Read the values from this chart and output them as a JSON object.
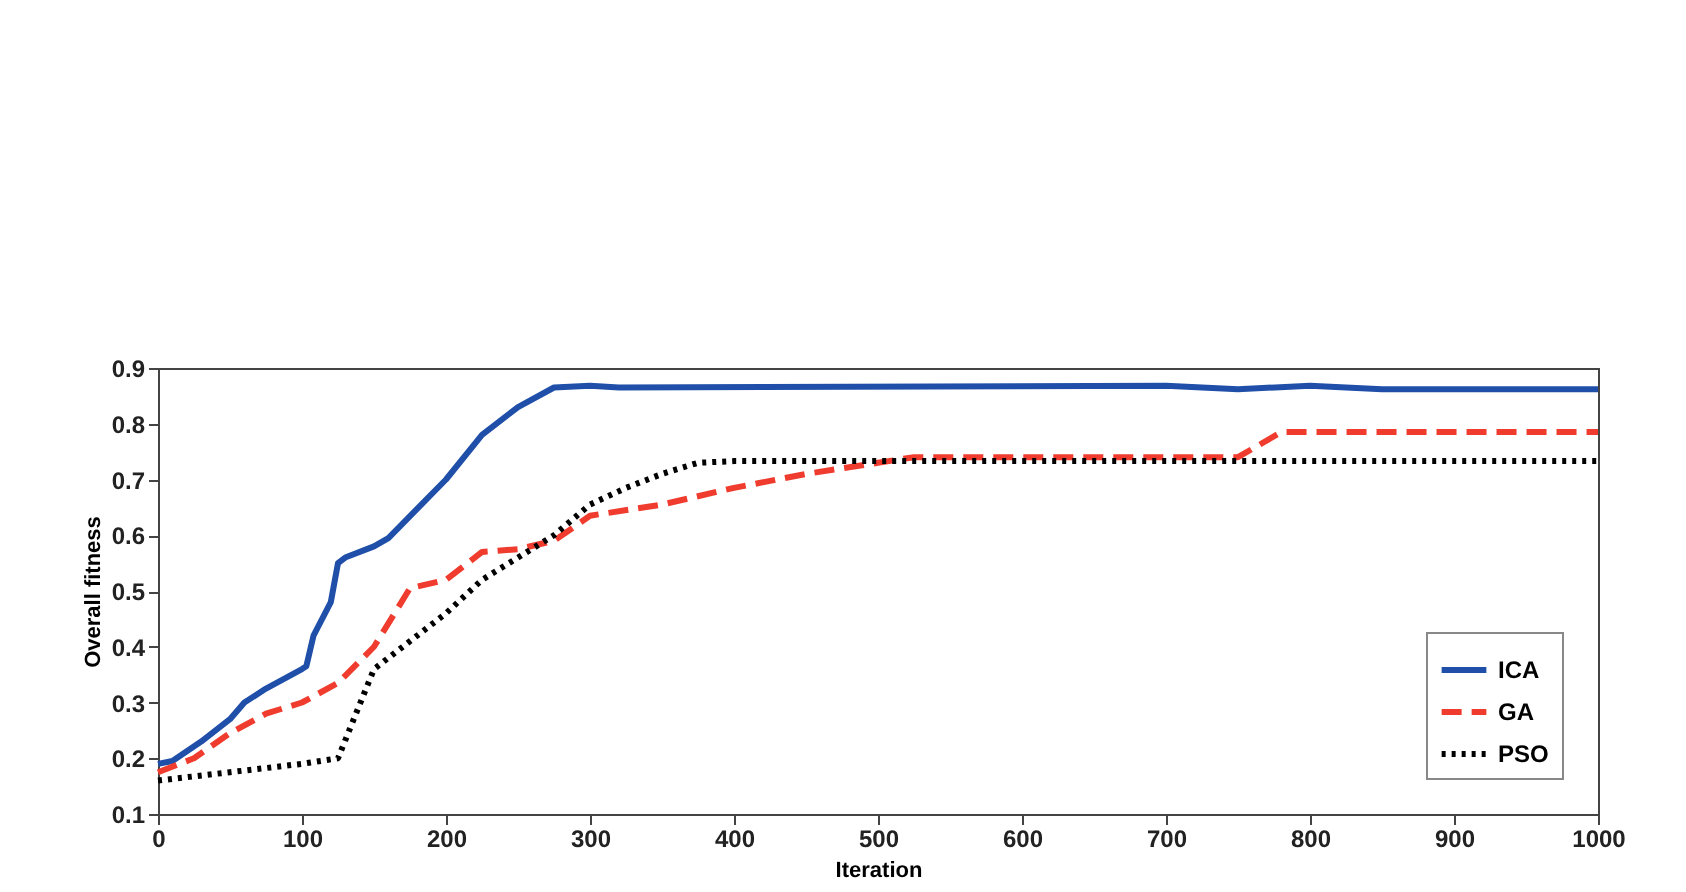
{
  "chart_data": {
    "type": "line",
    "xlabel": "Iteration",
    "ylabel": "Overall fitness",
    "xlim": [
      0,
      1000
    ],
    "ylim": [
      0.1,
      0.9
    ],
    "xticks": [
      0,
      100,
      200,
      300,
      400,
      500,
      600,
      700,
      800,
      900,
      1000
    ],
    "yticks": [
      0.1,
      0.2,
      0.3,
      0.4,
      0.5,
      0.6,
      0.7,
      0.8,
      0.9
    ],
    "grid": false,
    "legend": "bottom right",
    "series": [
      {
        "name": "ICA",
        "color": "#1f4fa8",
        "line_style": "solid",
        "x": [
          0,
          10,
          30,
          50,
          60,
          75,
          100,
          103,
          108,
          120,
          125,
          130,
          150,
          160,
          200,
          225,
          250,
          275,
          300,
          320,
          700,
          750,
          800,
          850,
          1000
        ],
        "values": [
          0.19,
          0.195,
          0.23,
          0.27,
          0.3,
          0.325,
          0.36,
          0.365,
          0.42,
          0.48,
          0.55,
          0.56,
          0.58,
          0.595,
          0.7,
          0.78,
          0.83,
          0.865,
          0.868,
          0.865,
          0.868,
          0.862,
          0.868,
          0.862,
          0.862
        ]
      },
      {
        "name": "GA",
        "color": "#f03c2e",
        "line_style": "dashed",
        "x": [
          0,
          25,
          50,
          75,
          100,
          125,
          150,
          175,
          200,
          225,
          250,
          275,
          300,
          350,
          400,
          450,
          500,
          525,
          600,
          750,
          780,
          1000
        ],
        "values": [
          0.175,
          0.2,
          0.245,
          0.28,
          0.3,
          0.335,
          0.4,
          0.505,
          0.52,
          0.57,
          0.575,
          0.59,
          0.635,
          0.655,
          0.685,
          0.71,
          0.73,
          0.74,
          0.74,
          0.74,
          0.785,
          0.785
        ]
      },
      {
        "name": "PSO",
        "color": "#000000",
        "line_style": "dotted",
        "x": [
          0,
          50,
          100,
          125,
          150,
          175,
          200,
          225,
          250,
          275,
          300,
          325,
          350,
          375,
          400,
          1000
        ],
        "values": [
          0.16,
          0.175,
          0.19,
          0.2,
          0.36,
          0.41,
          0.46,
          0.52,
          0.56,
          0.6,
          0.655,
          0.685,
          0.71,
          0.73,
          0.733,
          0.733
        ]
      }
    ]
  }
}
